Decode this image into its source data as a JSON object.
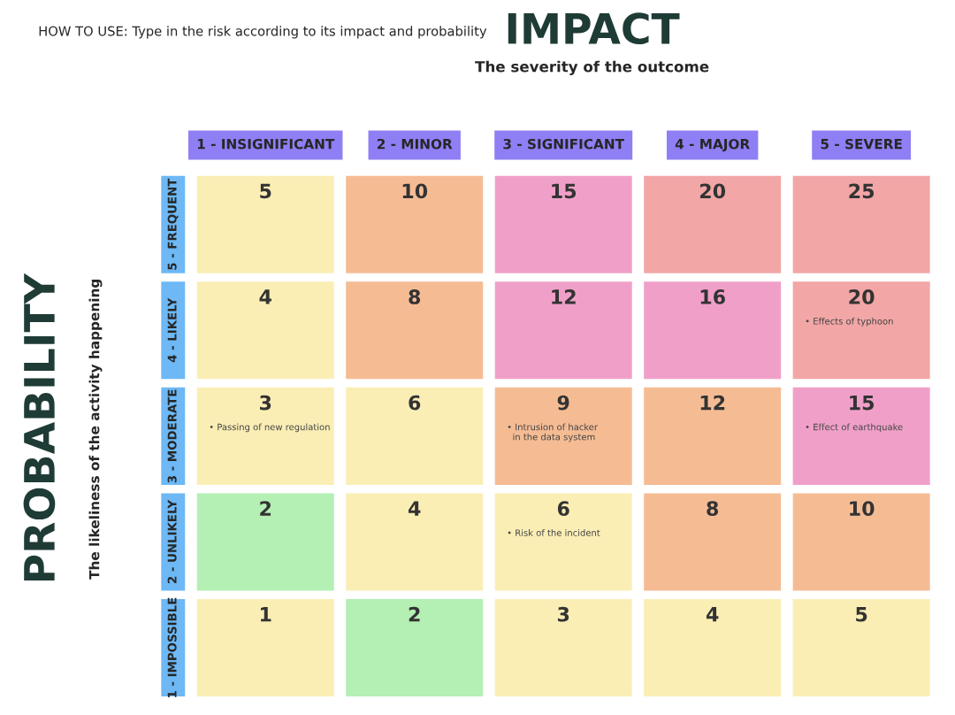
{
  "chart_data": {
    "type": "heatmap",
    "title": "IMPACT",
    "subtitle": "The severity of the outcome",
    "ylabel": "PROBABILITY",
    "categories": [
      "1 - INSIGNIFICANT",
      "2 - MINOR",
      "3 - SIGNIFICANT",
      "4 - MAJOR",
      "5 - SEVERE"
    ],
    "y_categories": [
      "5 - FREQUENT",
      "4 - LIKELY",
      "3 - MODERATE",
      "2 - UNLIKELY",
      "1 - IMPOSSIBLE"
    ],
    "cells": [
      [
        5,
        10,
        15,
        20,
        25
      ],
      [
        4,
        8,
        12,
        16,
        20
      ],
      [
        3,
        6,
        9,
        12,
        15
      ],
      [
        2,
        4,
        6,
        8,
        10
      ],
      [
        1,
        2,
        3,
        4,
        5
      ]
    ],
    "colors": [
      [
        "#fbeeb5",
        "#f5bc94",
        "#f0a0c8",
        "#f2a6a6",
        "#f2a6a6"
      ],
      [
        "#fbeeb5",
        "#f5bc94",
        "#f0a0c8",
        "#f0a0c8",
        "#f2a6a6"
      ],
      [
        "#fbeeb5",
        "#fbeeb5",
        "#f5bc94",
        "#f5bc94",
        "#f0a0c8"
      ],
      [
        "#b4efb4",
        "#fbeeb5",
        "#fbeeb5",
        "#f5bc94",
        "#f5bc94"
      ],
      [
        "#fbeeb5",
        "#b4efb4",
        "#fbeeb5",
        "#fbeeb5",
        "#fbeeb5"
      ]
    ],
    "data_labels": true,
    "annotations": [
      "HOW TO USE: Type in the risk according to its impact and probability",
      "The likeliness of the activity happening",
      "• Effects of typhoon",
      "• Passing of new regulation",
      "• Intrusion of hacker in the data system",
      "• Effect of earthquake",
      "• Risk of the incident"
    ]
  }
}
